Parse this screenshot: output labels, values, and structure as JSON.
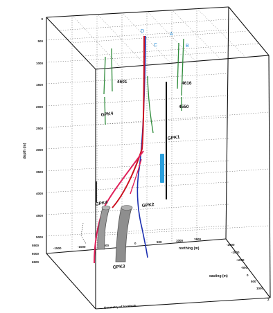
{
  "axes": {
    "depth_title": "depth (m)",
    "depth_ticks": [
      "0",
      "500",
      "1000",
      "1500",
      "2000",
      "2500",
      "3000",
      "3500",
      "4000",
      "4500",
      "5000",
      "5500",
      "6000",
      "6500"
    ],
    "northing_title": "northing (m)",
    "northing_ticks": [
      "-1500",
      "-1000",
      "-500",
      "0",
      "500",
      "1000",
      "1500"
    ],
    "easting_title": "easting (m)",
    "easting_ticks": [
      "-2000",
      "-1500",
      "-1000",
      "-500",
      "0",
      "500",
      "1000"
    ],
    "caption": "Geometry of borehole...",
    "corner_label": "2"
  },
  "wells": [
    {
      "name": "4601",
      "color": "#2e8b3a"
    },
    {
      "name": "4616",
      "color": "#2e8b3a"
    },
    {
      "name": "4550",
      "color": "#2e8b3a"
    },
    {
      "name": "GPK4",
      "color": "#2e8b3a"
    },
    {
      "name": "GPK1",
      "color": "#111111"
    },
    {
      "name": "GPK2",
      "color": "#1c2fb0"
    },
    {
      "name": "GPK3",
      "color": "#808080"
    },
    {
      "name": "GPK4",
      "color": "#e0205a"
    }
  ],
  "point_labels": [
    "D",
    "C",
    "A",
    "B"
  ],
  "colors": {
    "green": "#2e8b3a",
    "black": "#111111",
    "blue": "#1c2fb0",
    "magenta": "#e0205a",
    "red": "#cc1020",
    "gray": "#8e8e8e",
    "cyan": "#2a9fdc"
  }
}
